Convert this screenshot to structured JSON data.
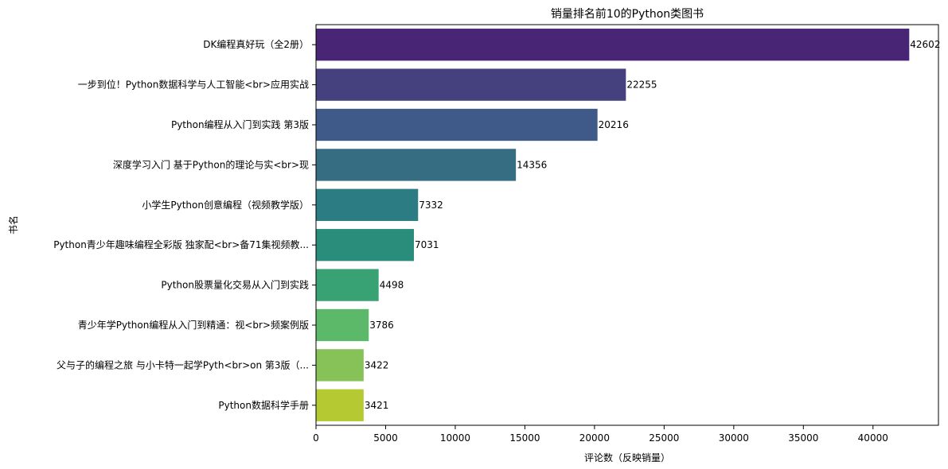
{
  "chart_data": {
    "type": "bar",
    "orientation": "horizontal",
    "title": "销量排名前10的Python类图书",
    "xlabel": "评论数（反映销量）",
    "ylabel": "书名",
    "xlim": [
      0,
      44700
    ],
    "xticks": [
      0,
      5000,
      10000,
      15000,
      20000,
      25000,
      30000,
      35000,
      40000
    ],
    "grid": false,
    "categories": [
      "DK编程真好玩（全2册）",
      "一步到位！Python数据科学与人工智能<br>应用实战",
      "Python编程从入门到实践 第3版",
      "深度学习入门 基于Python的理论与实<br>现",
      "小学生Python创意编程（视频教学版）",
      "Python青少年趣味编程全彩版 独家配<br>备71集视频教...",
      "Python股票量化交易从入门到实践",
      "青少年学Python编程从入门到精通：视<br>频案例版",
      "父与子的编程之旅 与小卡特一起学Pyth<br>on 第3版（...",
      "Python数据科学手册"
    ],
    "values": [
      42602,
      22255,
      20216,
      14356,
      7332,
      7031,
      4498,
      3786,
      3422,
      3421
    ],
    "colors": [
      "#482575",
      "#45417f",
      "#3f5a89",
      "#376d83",
      "#2c7c84",
      "#2a8d7c",
      "#38a274",
      "#5db96a",
      "#86c257",
      "#b5c933"
    ]
  }
}
